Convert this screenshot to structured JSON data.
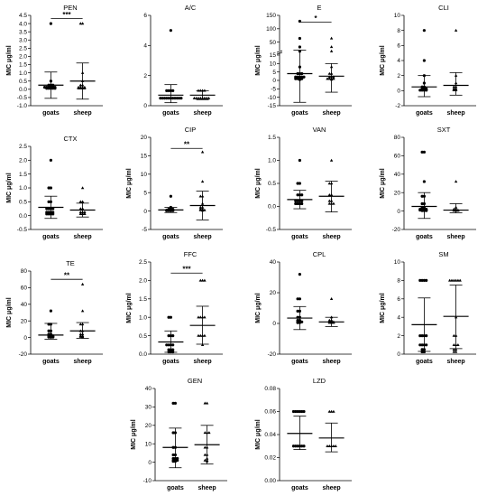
{
  "chart_data": [
    {
      "id": "pen",
      "type": "scatter",
      "title": "PEN",
      "ylabel": "MIC μg/ml",
      "categories": [
        "goats",
        "sheep"
      ],
      "ylim": [
        -1,
        4.5
      ],
      "yticks": [
        "-1.0",
        "-0.5",
        "0.0",
        "0.5",
        "1.0",
        "1.5",
        "2.0",
        "2.5",
        "3.0",
        "3.5",
        "4.0",
        "4.5"
      ],
      "yticks_pos": [
        -1,
        -0.5,
        0,
        0.5,
        1,
        1.5,
        2,
        2.5,
        3,
        3.5,
        4,
        4.5
      ],
      "series": [
        {
          "name": "goats",
          "mean": 0.25,
          "sd_low": -0.55,
          "sd_high": 1.05,
          "points": [
            0.06,
            0.06,
            0.06,
            0.12,
            0.12,
            0.12,
            0.12,
            0.25,
            0.25,
            0.06,
            0.06,
            0.12,
            4,
            0.5,
            0.25,
            0.12
          ]
        },
        {
          "name": "sheep",
          "mean": 0.5,
          "sd_low": -0.6,
          "sd_high": 1.6,
          "points": [
            0.06,
            0.06,
            0.12,
            0.12,
            0.25,
            0.25,
            0.06,
            0.12,
            4,
            4,
            0.5,
            1.0,
            0.12,
            0.06
          ]
        }
      ],
      "significance": {
        "label": "***",
        "value": 4.3
      }
    },
    {
      "id": "ac",
      "type": "scatter",
      "title": "A/C",
      "ylabel": "",
      "categories": [
        "goats",
        "sheep"
      ],
      "ylim": [
        0,
        6
      ],
      "yticks": [
        "0",
        "2",
        "4",
        "6"
      ],
      "yticks_pos": [
        0,
        2,
        4,
        6
      ],
      "series": [
        {
          "name": "goats",
          "mean": 0.7,
          "sd_low": 0.2,
          "sd_high": 1.4,
          "points": [
            0.5,
            0.5,
            0.5,
            0.5,
            0.5,
            0.5,
            1,
            1,
            1,
            0.5,
            0.5,
            5,
            1,
            0.5,
            0.5,
            0.5
          ]
        },
        {
          "name": "sheep",
          "mean": 0.7,
          "sd_low": 0.4,
          "sd_high": 1.0,
          "points": [
            0.5,
            0.5,
            0.5,
            0.5,
            1,
            1,
            1,
            0.5,
            0.5,
            0.5,
            1,
            0.5
          ]
        }
      ]
    },
    {
      "id": "e",
      "type": "scatter",
      "title": "E",
      "ylabel": "MIC μg/ml",
      "categories": [
        "goats",
        "sheep"
      ],
      "ylim": [
        -15,
        150
      ],
      "yticks": [
        "-15",
        "-10",
        "-5",
        "0",
        "5",
        "10",
        "15",
        "50",
        "100",
        "150"
      ],
      "yticks_pos": [
        -15,
        -10,
        -5,
        0,
        5,
        10,
        15,
        50,
        100,
        150
      ],
      "series": [
        {
          "name": "goats",
          "mean": 4,
          "sd_low": -13,
          "sd_high": 20,
          "points": [
            1,
            1,
            1,
            2,
            2,
            2,
            2,
            4,
            4,
            4,
            1,
            2,
            8,
            16,
            32,
            64,
            128,
            0.5
          ]
        },
        {
          "name": "sheep",
          "mean": 2.5,
          "sd_low": -7,
          "sd_high": 10,
          "points": [
            1,
            1,
            1,
            2,
            2,
            2,
            4,
            4,
            1,
            0.5,
            8,
            16,
            32,
            64
          ]
        }
      ],
      "significance": {
        "label": "*",
        "value": 125
      }
    },
    {
      "id": "cli",
      "type": "scatter",
      "title": "CLI",
      "ylabel": "MIC μg/ml",
      "categories": [
        "goats",
        "sheep"
      ],
      "ylim": [
        -2,
        10
      ],
      "yticks": [
        "-2",
        "0",
        "2",
        "4",
        "6",
        "8",
        "10"
      ],
      "yticks_pos": [
        -2,
        0,
        2,
        4,
        6,
        8,
        10
      ],
      "series": [
        {
          "name": "goats",
          "mean": 0.5,
          "sd_low": -0.8,
          "sd_high": 2,
          "points": [
            0.06,
            0.06,
            0.12,
            0.12,
            0.25,
            0.25,
            0.5,
            0.5,
            0.06,
            0.12,
            8,
            4,
            2,
            1,
            0.25,
            0.06
          ]
        },
        {
          "name": "sheep",
          "mean": 0.7,
          "sd_low": -0.6,
          "sd_high": 2.4,
          "points": [
            0.06,
            0.12,
            0.25,
            0.25,
            0.5,
            0.5,
            0.06,
            8,
            2,
            1,
            0.12
          ]
        }
      ]
    },
    {
      "id": "ctx",
      "type": "scatter",
      "title": "CTX",
      "ylabel": "MIC μg/ml",
      "categories": [
        "goats",
        "sheep"
      ],
      "ylim": [
        -0.5,
        2.5
      ],
      "yticks": [
        "-0.5",
        "0.0",
        "0.5",
        "1.0",
        "1.5",
        "2.0",
        "2.5"
      ],
      "yticks_pos": [
        -0.5,
        0,
        0.5,
        1,
        1.5,
        2,
        2.5
      ],
      "series": [
        {
          "name": "goats",
          "mean": 0.3,
          "sd_low": -0.1,
          "sd_high": 0.7,
          "points": [
            0.06,
            0.06,
            0.06,
            0.12,
            0.12,
            0.12,
            0.25,
            0.25,
            0.25,
            0.5,
            0.5,
            1,
            1,
            2,
            0.06,
            0.12,
            0.25
          ]
        },
        {
          "name": "sheep",
          "mean": 0.2,
          "sd_low": -0.05,
          "sd_high": 0.45,
          "points": [
            0.06,
            0.06,
            0.12,
            0.12,
            0.25,
            0.25,
            0.5,
            0.5,
            1,
            0.06,
            0.12
          ]
        }
      ]
    },
    {
      "id": "cip",
      "type": "scatter",
      "title": "CIP",
      "ylabel": "MIC μg/ml",
      "categories": [
        "goats",
        "sheep"
      ],
      "ylim": [
        -5,
        20
      ],
      "yticks": [
        "-5",
        "0",
        "5",
        "10",
        "15",
        "20"
      ],
      "yticks_pos": [
        -5,
        0,
        5,
        10,
        15,
        20
      ],
      "series": [
        {
          "name": "goats",
          "mean": 0.3,
          "sd_low": -0.4,
          "sd_high": 1.0,
          "points": [
            0.12,
            0.12,
            0.25,
            0.25,
            0.25,
            0.5,
            0.5,
            0.12,
            0.25,
            4,
            1,
            0.5,
            0.12
          ]
        },
        {
          "name": "sheep",
          "mean": 1.5,
          "sd_low": -2.4,
          "sd_high": 5.4,
          "points": [
            0.12,
            0.25,
            0.25,
            0.5,
            0.5,
            1,
            1,
            2,
            4,
            4,
            8,
            16,
            0.25
          ]
        }
      ],
      "significance": {
        "label": "**",
        "value": 17
      }
    },
    {
      "id": "van",
      "type": "scatter",
      "title": "VAN",
      "ylabel": "MIC μg/ml",
      "categories": [
        "goats",
        "sheep"
      ],
      "ylim": [
        -0.5,
        1.5
      ],
      "yticks": [
        "-0.5",
        "0.0",
        "0.5",
        "1.0",
        "1.5"
      ],
      "yticks_pos": [
        -0.5,
        0,
        0.5,
        1,
        1.5
      ],
      "series": [
        {
          "name": "goats",
          "mean": 0.15,
          "sd_low": -0.05,
          "sd_high": 0.35,
          "points": [
            0.06,
            0.06,
            0.06,
            0.12,
            0.12,
            0.12,
            0.25,
            0.25,
            0.25,
            0.5,
            0.5,
            1,
            0.06,
            0.12
          ]
        },
        {
          "name": "sheep",
          "mean": 0.22,
          "sd_low": -0.12,
          "sd_high": 0.55,
          "points": [
            0.06,
            0.06,
            0.12,
            0.12,
            0.25,
            0.25,
            0.5,
            0.5,
            1,
            0.06
          ]
        }
      ]
    },
    {
      "id": "sxt",
      "type": "scatter",
      "title": "SXT",
      "ylabel": "MIC μg/ml",
      "categories": [
        "goats",
        "sheep"
      ],
      "ylim": [
        -20,
        80
      ],
      "yticks": [
        "-20",
        "0",
        "20",
        "40",
        "60",
        "80"
      ],
      "yticks_pos": [
        -20,
        0,
        20,
        40,
        60,
        80
      ],
      "series": [
        {
          "name": "goats",
          "mean": 5,
          "sd_low": -8,
          "sd_high": 20,
          "points": [
            0.5,
            0.5,
            1,
            1,
            1,
            2,
            2,
            2,
            4,
            4,
            8,
            8,
            16,
            16,
            32,
            64,
            64,
            1,
            2,
            0.5
          ]
        },
        {
          "name": "sheep",
          "mean": 1,
          "sd_low": -2,
          "sd_high": 8,
          "points": [
            0.5,
            0.5,
            1,
            1,
            2,
            2,
            4,
            32,
            1,
            0.5
          ]
        }
      ]
    },
    {
      "id": "te",
      "type": "scatter",
      "title": "TE",
      "ylabel": "MIC μg/ml",
      "categories": [
        "goats",
        "sheep"
      ],
      "ylim": [
        -20,
        80
      ],
      "yticks": [
        "-20",
        "0",
        "20",
        "40",
        "60",
        "80"
      ],
      "yticks_pos": [
        -20,
        0,
        20,
        40,
        60,
        80
      ],
      "series": [
        {
          "name": "goats",
          "mean": 3,
          "sd_low": -2,
          "sd_high": 17,
          "points": [
            0.5,
            0.5,
            1,
            1,
            2,
            2,
            4,
            4,
            8,
            8,
            16,
            16,
            32,
            1,
            2,
            0.5
          ]
        },
        {
          "name": "sheep",
          "mean": 8,
          "sd_low": -1,
          "sd_high": 18,
          "points": [
            0.5,
            1,
            2,
            4,
            4,
            8,
            8,
            16,
            16,
            32,
            64,
            2,
            1
          ]
        }
      ],
      "significance": {
        "label": "**",
        "value": 70
      }
    },
    {
      "id": "ffc",
      "type": "scatter",
      "title": "FFC",
      "ylabel": "MIC μg/ml",
      "categories": [
        "goats",
        "sheep"
      ],
      "ylim": [
        0,
        2.5
      ],
      "yticks": [
        "0.0",
        "0.5",
        "1.0",
        "1.5",
        "2.0",
        "2.5"
      ],
      "yticks_pos": [
        0,
        0.5,
        1,
        1.5,
        2,
        2.5
      ],
      "series": [
        {
          "name": "goats",
          "mean": 0.33,
          "sd_low": 0.05,
          "sd_high": 0.63,
          "points": [
            0.06,
            0.06,
            0.12,
            0.12,
            0.25,
            0.25,
            0.25,
            0.5,
            0.5,
            0.5,
            1,
            1,
            0.06,
            0.12,
            0.25
          ]
        },
        {
          "name": "sheep",
          "mean": 0.78,
          "sd_low": 0.27,
          "sd_high": 1.3,
          "points": [
            0.5,
            0.5,
            0.5,
            1,
            1,
            1,
            2,
            2,
            0.25,
            0.5,
            1,
            2
          ]
        }
      ],
      "significance": {
        "label": "***",
        "value": 2.2
      }
    },
    {
      "id": "cpl",
      "type": "scatter",
      "title": "CPL",
      "ylabel": "MIC μg/ml",
      "categories": [
        "goats",
        "sheep"
      ],
      "ylim": [
        -20,
        40
      ],
      "yticks": [
        "-20",
        "0",
        "20",
        "40"
      ],
      "yticks_pos": [
        -20,
        0,
        20,
        40
      ],
      "series": [
        {
          "name": "goats",
          "mean": 3.5,
          "sd_low": -4,
          "sd_high": 11,
          "points": [
            0.5,
            1,
            1,
            2,
            2,
            4,
            4,
            8,
            8,
            16,
            16,
            32,
            0.5,
            1
          ]
        },
        {
          "name": "sheep",
          "mean": 1,
          "sd_low": -2,
          "sd_high": 4,
          "points": [
            0.5,
            0.5,
            1,
            1,
            2,
            2,
            4,
            16,
            0.5,
            1
          ]
        }
      ]
    },
    {
      "id": "sm",
      "type": "scatter",
      "title": "SM",
      "ylabel": "MIC μg/ml",
      "categories": [
        "goats",
        "sheep"
      ],
      "ylim": [
        0,
        10
      ],
      "yticks": [
        "0",
        "2",
        "4",
        "6",
        "8",
        "10"
      ],
      "yticks_pos": [
        0,
        2,
        4,
        6,
        8,
        10
      ],
      "series": [
        {
          "name": "goats",
          "mean": 3.2,
          "sd_low": 0.3,
          "sd_high": 6.1,
          "points": [
            0.25,
            0.25,
            0.5,
            0.5,
            1,
            1,
            1,
            2,
            2,
            2,
            2,
            8,
            8,
            8,
            8,
            1
          ]
        },
        {
          "name": "sheep",
          "mean": 4.1,
          "sd_low": 0.6,
          "sd_high": 7.5,
          "points": [
            0.25,
            0.5,
            0.5,
            1,
            1,
            2,
            2,
            4,
            8,
            8,
            8,
            8,
            8,
            8,
            1,
            0.25
          ]
        }
      ]
    },
    {
      "id": "gen",
      "type": "scatter",
      "title": "GEN",
      "ylabel": "MIC μg/ml",
      "categories": [
        "goats",
        "sheep"
      ],
      "ylim": [
        -10,
        40
      ],
      "yticks": [
        "-10",
        "0",
        "10",
        "20",
        "30",
        "40"
      ],
      "yticks_pos": [
        -10,
        0,
        10,
        20,
        30,
        40
      ],
      "series": [
        {
          "name": "goats",
          "mean": 8,
          "sd_low": -3,
          "sd_high": 18.5,
          "points": [
            0.5,
            0.5,
            1,
            1,
            2,
            2,
            4,
            4,
            8,
            8,
            16,
            16,
            32,
            32,
            1,
            2
          ]
        },
        {
          "name": "sheep",
          "mean": 9.5,
          "sd_low": -1,
          "sd_high": 20,
          "points": [
            0.5,
            1,
            2,
            4,
            8,
            8,
            16,
            16,
            16,
            32,
            32,
            1,
            4
          ]
        }
      ]
    },
    {
      "id": "lzd",
      "type": "scatter",
      "title": "LZD",
      "ylabel": "MIC μg/ml",
      "categories": [
        "goats",
        "sheep"
      ],
      "ylim": [
        0,
        0.08
      ],
      "yticks": [
        "0.00",
        "0.02",
        "0.04",
        "0.06",
        "0.08"
      ],
      "yticks_pos": [
        0,
        0.02,
        0.04,
        0.06,
        0.08
      ],
      "series": [
        {
          "name": "goats",
          "mean": 0.041,
          "sd_low": 0.027,
          "sd_high": 0.056,
          "points": [
            0.03,
            0.03,
            0.03,
            0.03,
            0.06,
            0.06,
            0.06,
            0.06,
            0.03,
            0.06,
            0.03,
            0.06
          ]
        },
        {
          "name": "sheep",
          "mean": 0.037,
          "sd_low": 0.025,
          "sd_high": 0.05,
          "points": [
            0.03,
            0.03,
            0.03,
            0.06,
            0.06,
            0.03,
            0.06,
            0.03
          ]
        }
      ]
    }
  ]
}
